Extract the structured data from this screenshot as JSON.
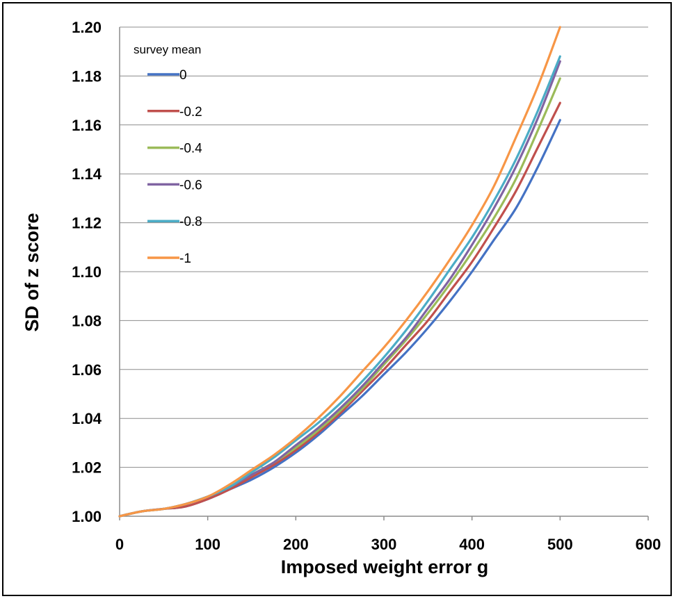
{
  "chart_data": {
    "type": "line",
    "title": "",
    "xlabel": "Imposed weight error g",
    "ylabel": "SD of z score",
    "xlim": [
      0,
      600
    ],
    "ylim": [
      1.0,
      1.2
    ],
    "x_ticks": [
      "0",
      "100",
      "200",
      "300",
      "400",
      "500",
      "600"
    ],
    "y_ticks": [
      "1.00",
      "1.02",
      "1.04",
      "1.06",
      "1.08",
      "1.10",
      "1.12",
      "1.14",
      "1.16",
      "1.18",
      "1.20"
    ],
    "grid": "horizontal",
    "legend_title": "survey mean",
    "legend_position": "top-left",
    "x": [
      0,
      25,
      50,
      75,
      100,
      125,
      150,
      175,
      200,
      225,
      250,
      275,
      300,
      325,
      350,
      375,
      400,
      425,
      450,
      475,
      500
    ],
    "series": [
      {
        "name": "0",
        "color": "#4472C4",
        "values": [
          1.0,
          1.002,
          1.003,
          1.004,
          1.007,
          1.011,
          1.015,
          1.02,
          1.026,
          1.033,
          1.041,
          1.049,
          1.058,
          1.067,
          1.077,
          1.088,
          1.1,
          1.113,
          1.126,
          1.143,
          1.162
        ]
      },
      {
        "name": "-0.2",
        "color": "#C0504D",
        "values": [
          1.0,
          1.002,
          1.003,
          1.004,
          1.007,
          1.011,
          1.016,
          1.021,
          1.027,
          1.034,
          1.042,
          1.051,
          1.06,
          1.07,
          1.08,
          1.092,
          1.104,
          1.118,
          1.133,
          1.151,
          1.169
        ]
      },
      {
        "name": "-0.4",
        "color": "#9BBB59",
        "values": [
          1.0,
          1.002,
          1.003,
          1.005,
          1.008,
          1.012,
          1.017,
          1.022,
          1.028,
          1.035,
          1.043,
          1.052,
          1.062,
          1.072,
          1.083,
          1.095,
          1.108,
          1.122,
          1.138,
          1.158,
          1.179
        ]
      },
      {
        "name": "-0.6",
        "color": "#8064A2",
        "values": [
          1.0,
          1.002,
          1.003,
          1.005,
          1.008,
          1.012,
          1.017,
          1.022,
          1.029,
          1.036,
          1.044,
          1.053,
          1.063,
          1.073,
          1.085,
          1.097,
          1.111,
          1.126,
          1.143,
          1.163,
          1.186
        ]
      },
      {
        "name": "-0.8",
        "color": "#4BACC6",
        "values": [
          1.0,
          1.002,
          1.003,
          1.005,
          1.008,
          1.012,
          1.018,
          1.024,
          1.031,
          1.038,
          1.046,
          1.055,
          1.065,
          1.076,
          1.088,
          1.101,
          1.114,
          1.129,
          1.146,
          1.166,
          1.188
        ]
      },
      {
        "name": "-1",
        "color": "#F79646",
        "values": [
          1.0,
          1.002,
          1.003,
          1.005,
          1.008,
          1.013,
          1.019,
          1.025,
          1.032,
          1.04,
          1.049,
          1.059,
          1.069,
          1.08,
          1.092,
          1.105,
          1.119,
          1.135,
          1.155,
          1.176,
          1.2
        ]
      }
    ]
  }
}
